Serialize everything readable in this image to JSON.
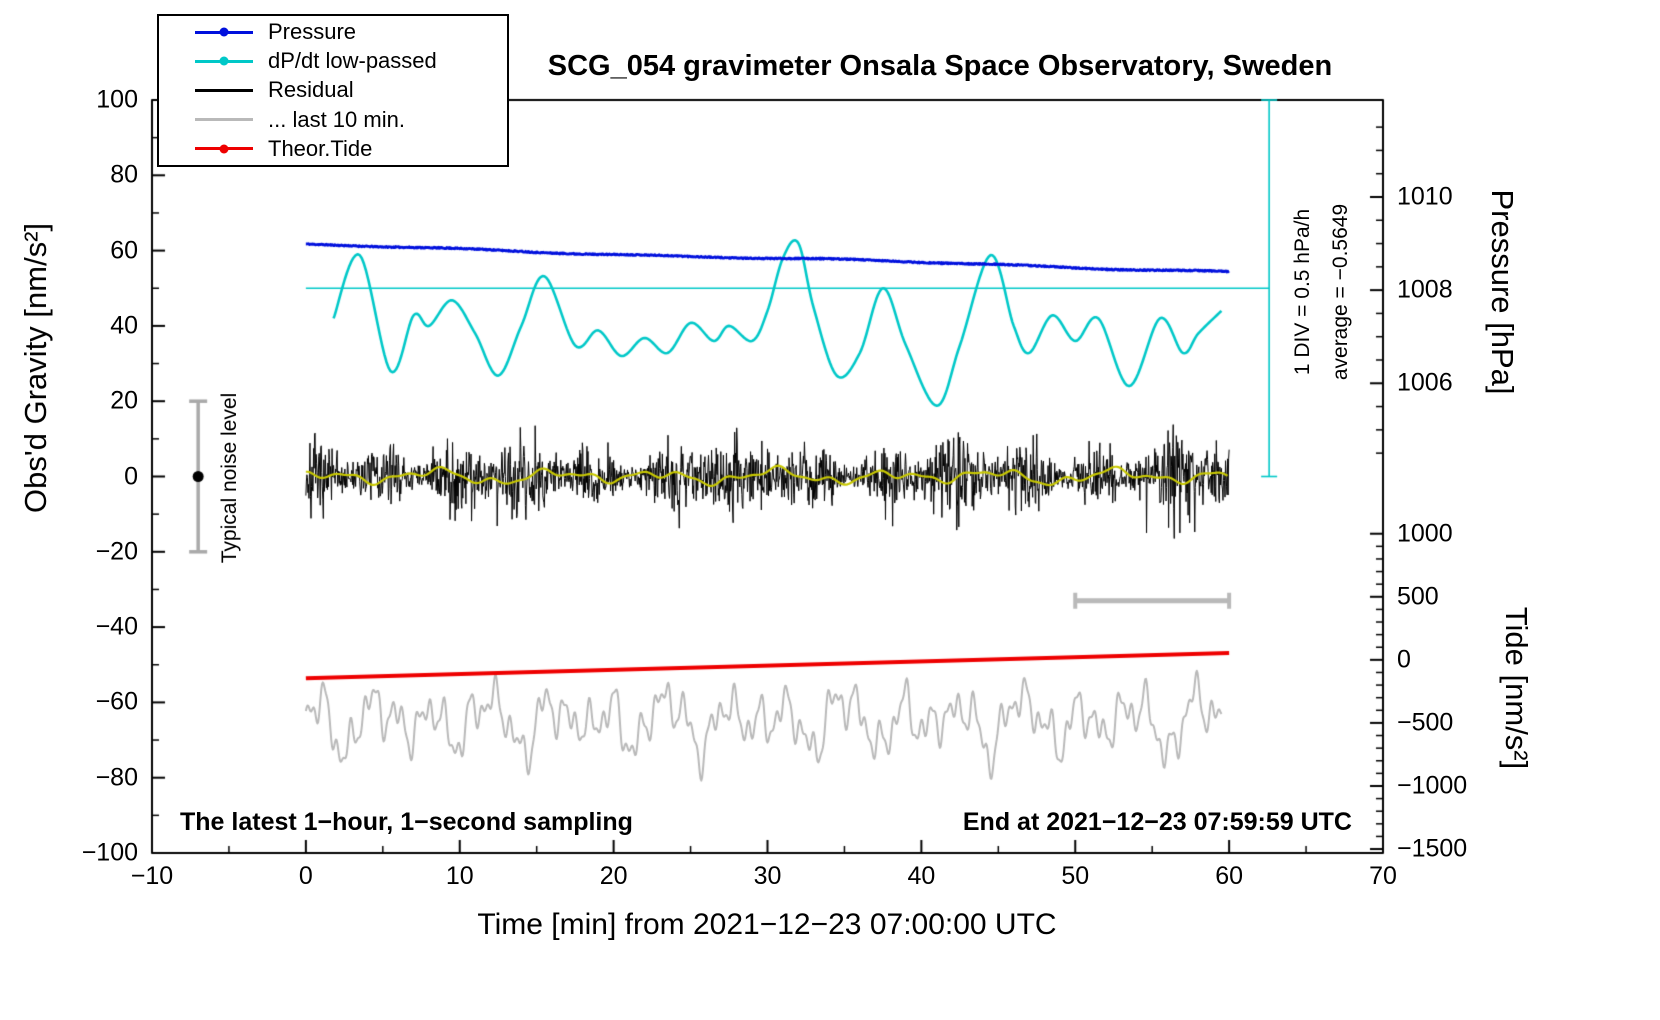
{
  "title": "SCG_054 gravimeter Onsala Space Observatory, Sweden",
  "legend": [
    {
      "label": "Pressure",
      "color": "#0010dd",
      "dot": true
    },
    {
      "label": "dP/dt low-passed",
      "color": "#00c8c8",
      "dot": true
    },
    {
      "label": "Residual",
      "color": "#000000",
      "dot": false
    },
    {
      "label": "... last 10 min.",
      "color": "#b9b9b9",
      "dot": false
    },
    {
      "label": "Theor.Tide",
      "color": "#ee0000",
      "dot": true
    }
  ],
  "axes": {
    "x": {
      "label": "Time [min] from 2021−12−23 07:00:00 UTC",
      "min": -10,
      "max": 70,
      "major_ticks": [
        -10,
        0,
        10,
        20,
        30,
        40,
        50,
        60,
        70
      ],
      "minor_step": 5
    },
    "y_left": {
      "label": "Obs'd Gravity [nm/s²]",
      "min": -100,
      "max": 100,
      "major_ticks": [
        -100,
        -80,
        -60,
        -40,
        -20,
        0,
        20,
        40,
        60,
        80,
        100
      ],
      "minor_step": 10
    },
    "y_right_pressure": {
      "label": "Pressure [hPa]",
      "major_ticks": [
        1006,
        1008,
        1010
      ],
      "minor_step": 0.5,
      "anchor_hPa": 1008,
      "anchor_gravity": 49.5,
      "gravity_per_hPa": 12.37
    },
    "y_right_tide": {
      "label": "Tide [nm/s²]",
      "major_ticks": [
        -1500,
        -1000,
        -500,
        0,
        500,
        1000
      ],
      "minor_step": 100,
      "anchor_tide": 0,
      "anchor_gravity": -48.7,
      "gravity_per_tide": 0.0335
    }
  },
  "annotations": {
    "noise_level": "Typical noise level",
    "div_scale": "1 DIV = 0.5 hPa/h",
    "average": "average = −0.5649",
    "sampling_note": "The latest 1−hour, 1−second sampling",
    "end_time": "End at 2021−12−23 07:59:59 UTC"
  },
  "chart_data": {
    "type": "line",
    "title": "SCG_054 gravimeter Onsala Space Observatory, Sweden",
    "x_units": "min",
    "x_range": [
      0,
      60
    ],
    "series": [
      {
        "name": "Pressure",
        "units": "hPa",
        "color": "#0010dd",
        "x_start": 0,
        "x_end": 60,
        "value_start": 1008.97,
        "value_end": 1008.4,
        "trend_hPa_per_h": -0.5649,
        "jitter": 0.013,
        "seed": 11
      },
      {
        "name": "dP/dt low-passed",
        "units": "hPa/h",
        "color": "#00c8c8",
        "zero_gravity": 50,
        "gravity_per_unit": 40,
        "x": [
          1.8,
          3.5,
          5.5,
          7,
          8,
          9.5,
          11,
          12.5,
          14,
          15.5,
          17.5,
          19,
          20.5,
          22,
          23.5,
          25,
          26.5,
          27.5,
          29,
          30,
          31,
          32,
          33,
          34.5,
          36,
          37.5,
          39,
          41,
          42.5,
          44.5,
          46,
          47,
          48.5,
          50,
          51.5,
          53.5,
          55.5,
          57,
          58,
          59.5
        ],
        "values": [
          -0.2,
          0.22,
          -0.55,
          -0.18,
          -0.25,
          -0.08,
          -0.3,
          -0.58,
          -0.25,
          0.08,
          -0.38,
          -0.28,
          -0.45,
          -0.33,
          -0.43,
          -0.23,
          -0.35,
          -0.25,
          -0.35,
          -0.15,
          0.2,
          0.3,
          -0.13,
          -0.58,
          -0.43,
          0.0,
          -0.38,
          -0.78,
          -0.38,
          0.22,
          -0.25,
          -0.43,
          -0.18,
          -0.35,
          -0.2,
          -0.65,
          -0.2,
          -0.43,
          -0.3,
          -0.15
        ]
      },
      {
        "name": "Residual",
        "units": "nm/s²",
        "color": "#000000",
        "x_start": 0,
        "x_end": 60,
        "center": 0,
        "band": 8.5,
        "spike": 18,
        "points": 1800,
        "seed": 7
      },
      {
        "name": "Residual low-passed",
        "units": "nm/s²",
        "color": "#c8c800",
        "x_start": 0,
        "x_end": 60,
        "center": 0,
        "components": [
          [
            1.2,
            7.3,
            0.5
          ],
          [
            0.8,
            3.1,
            2.1
          ],
          [
            0.5,
            11.7,
            4.0
          ],
          [
            0.4,
            1.7,
            1.2
          ]
        ]
      },
      {
        "name": "... last 10 min.",
        "units": "nm/s²",
        "color": "#b9b9b9",
        "x_start": 0,
        "x_end": 59.5,
        "center": -65,
        "components": [
          [
            4.5,
            3.83,
            0.7
          ],
          [
            3.6,
            1.57,
            2.9
          ],
          [
            3.0,
            0.86,
            5.3
          ],
          [
            2.6,
            5.9,
            1.9
          ],
          [
            1.6,
            0.47,
            0.4
          ],
          [
            2.0,
            2.33,
            4.1
          ]
        ]
      },
      {
        "name": "Theor.Tide",
        "units": "nm/s² (tide axis)",
        "color": "#ee0000",
        "x": [
          0,
          60
        ],
        "tide_values": [
          -145,
          55
        ]
      }
    ],
    "reference": {
      "dpdt_zero_line": {
        "gravity": 50,
        "x": [
          0,
          62.6
        ],
        "color": "#00c8c8"
      },
      "pressure_scale_bar": {
        "x": 62.6,
        "gravity": [
          0,
          100
        ],
        "color": "#00c8c8"
      },
      "last10_window_bar": {
        "x": [
          50,
          60
        ],
        "gravity": -33,
        "color": "#b9b9b9"
      },
      "noise_bar": {
        "x": -7,
        "gravity": [
          -20,
          20
        ],
        "dot_gravity": 0,
        "color": "#aaaaaa"
      }
    }
  }
}
